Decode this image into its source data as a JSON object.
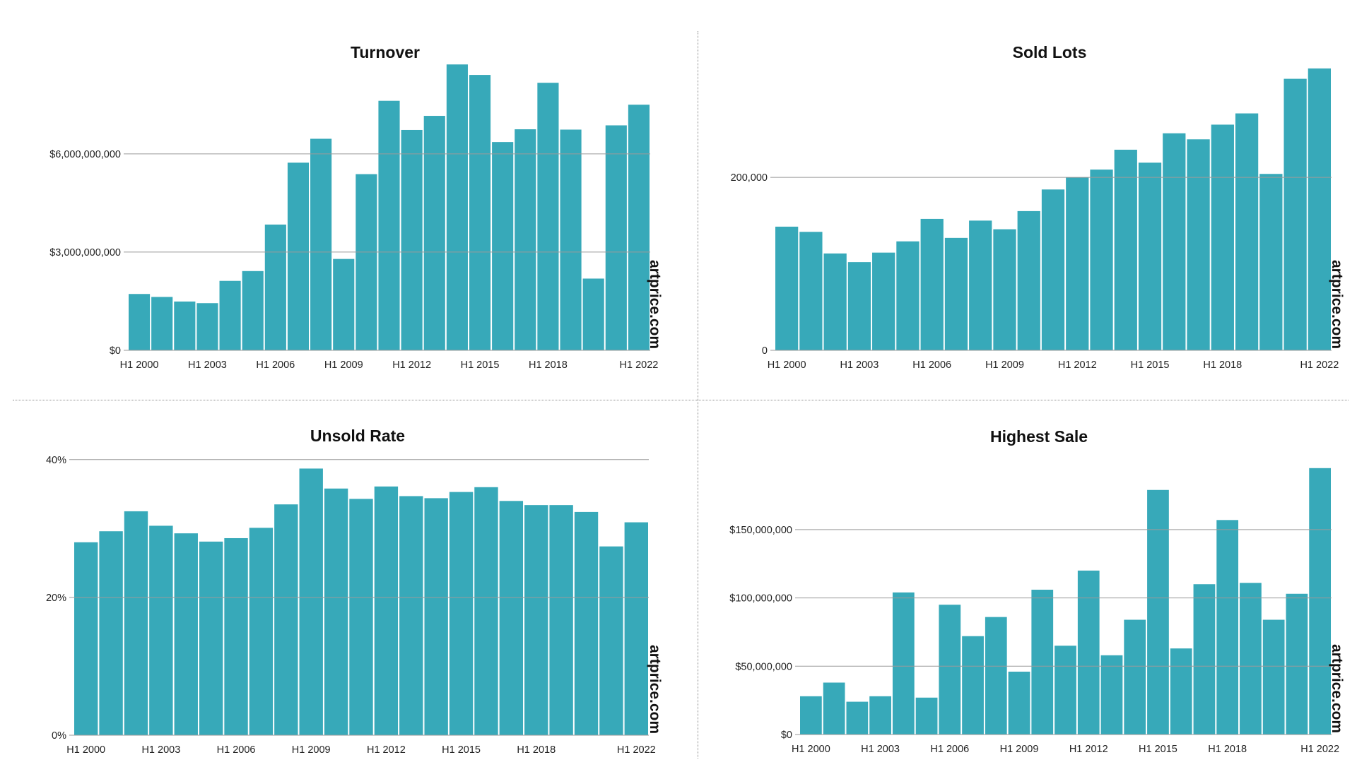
{
  "colors": {
    "bar": "#37a9b9",
    "grid": "#9a9a9a"
  },
  "chart_data": [
    {
      "id": "turnover",
      "type": "bar",
      "title": "Turnover",
      "watermark": "artprice.com",
      "categories": [
        "H1 2000",
        "H1 2001",
        "H1 2002",
        "H1 2003",
        "H1 2004",
        "H1 2005",
        "H1 2006",
        "H1 2007",
        "H1 2008",
        "H1 2009",
        "H1 2010",
        "H1 2011",
        "H1 2012",
        "H1 2013",
        "H1 2014",
        "H1 2015",
        "H1 2016",
        "H1 2017",
        "H1 2018",
        "H1 2019",
        "H1 2020",
        "H1 2021",
        "H1 2022"
      ],
      "values": [
        1720000000,
        1630000000,
        1490000000,
        1440000000,
        2120000000,
        2420000000,
        3840000000,
        5730000000,
        6460000000,
        2790000000,
        5380000000,
        7620000000,
        6730000000,
        7160000000,
        8730000000,
        8410000000,
        6360000000,
        6750000000,
        8170000000,
        6740000000,
        2190000000,
        6870000000,
        7500000000
      ],
      "ylim": [
        0,
        8800000000
      ],
      "yticks": [
        {
          "value": 0,
          "label": "$0"
        },
        {
          "value": 3000000000,
          "label": "$3,000,000,000"
        },
        {
          "value": 6000000000,
          "label": "$6,000,000,000"
        }
      ],
      "xtick_labels": [
        {
          "index": 0,
          "label": "H1 2000"
        },
        {
          "index": 3,
          "label": "H1 2003"
        },
        {
          "index": 6,
          "label": "H1 2006"
        },
        {
          "index": 9,
          "label": "H1 2009"
        },
        {
          "index": 12,
          "label": "H1 2012"
        },
        {
          "index": 15,
          "label": "H1 2015"
        },
        {
          "index": 18,
          "label": "H1 2018"
        },
        {
          "index": 22,
          "label": "H1 2022"
        }
      ]
    },
    {
      "id": "sold-lots",
      "type": "bar",
      "title": "Sold Lots",
      "watermark": "artprice.com",
      "categories": [
        "H1 2000",
        "H1 2001",
        "H1 2002",
        "H1 2003",
        "H1 2004",
        "H1 2005",
        "H1 2006",
        "H1 2007",
        "H1 2008",
        "H1 2009",
        "H1 2010",
        "H1 2011",
        "H1 2012",
        "H1 2013",
        "H1 2014",
        "H1 2015",
        "H1 2016",
        "H1 2017",
        "H1 2018",
        "H1 2019",
        "H1 2020",
        "H1 2021",
        "H1 2022"
      ],
      "values": [
        143000,
        137000,
        112000,
        102000,
        113000,
        126000,
        152000,
        130000,
        150000,
        140000,
        161000,
        186000,
        200000,
        209000,
        232000,
        217000,
        251000,
        244000,
        261000,
        274000,
        204000,
        314000,
        326000
      ],
      "ylim": [
        0,
        330000
      ],
      "yticks": [
        {
          "value": 0,
          "label": "0"
        },
        {
          "value": 200000,
          "label": "200,000"
        }
      ],
      "xtick_labels": [
        {
          "index": 0,
          "label": "H1 2000"
        },
        {
          "index": 3,
          "label": "H1 2003"
        },
        {
          "index": 6,
          "label": "H1 2006"
        },
        {
          "index": 9,
          "label": "H1 2009"
        },
        {
          "index": 12,
          "label": "H1 2012"
        },
        {
          "index": 15,
          "label": "H1 2015"
        },
        {
          "index": 18,
          "label": "H1 2018"
        },
        {
          "index": 22,
          "label": "H1 2022"
        }
      ]
    },
    {
      "id": "unsold-rate",
      "type": "bar",
      "title": "Unsold Rate",
      "watermark": "artprice.com",
      "categories": [
        "H1 2000",
        "H1 2001",
        "H1 2002",
        "H1 2003",
        "H1 2004",
        "H1 2005",
        "H1 2006",
        "H1 2007",
        "H1 2008",
        "H1 2009",
        "H1 2010",
        "H1 2011",
        "H1 2012",
        "H1 2013",
        "H1 2014",
        "H1 2015",
        "H1 2016",
        "H1 2017",
        "H1 2018",
        "H1 2019",
        "H1 2020",
        "H1 2021",
        "H1 2022"
      ],
      "values": [
        28.0,
        29.6,
        32.5,
        30.4,
        29.3,
        28.1,
        28.6,
        30.1,
        33.5,
        38.7,
        35.8,
        34.3,
        36.1,
        34.7,
        34.4,
        35.3,
        36.0,
        34.0,
        33.4,
        33.4,
        32.4,
        27.4,
        30.9
      ],
      "ylim": [
        0,
        41
      ],
      "yticks": [
        {
          "value": 0,
          "label": "0%"
        },
        {
          "value": 20,
          "label": "20%"
        },
        {
          "value": 40,
          "label": "40%"
        }
      ],
      "xtick_labels": [
        {
          "index": 0,
          "label": "H1 2000"
        },
        {
          "index": 3,
          "label": "H1 2003"
        },
        {
          "index": 6,
          "label": "H1 2006"
        },
        {
          "index": 9,
          "label": "H1 2009"
        },
        {
          "index": 12,
          "label": "H1 2012"
        },
        {
          "index": 15,
          "label": "H1 2015"
        },
        {
          "index": 18,
          "label": "H1 2018"
        },
        {
          "index": 22,
          "label": "H1 2022"
        }
      ]
    },
    {
      "id": "highest-sale",
      "type": "bar",
      "title": "Highest Sale",
      "watermark": "artprice.com",
      "categories": [
        "H1 2000",
        "H1 2001",
        "H1 2002",
        "H1 2003",
        "H1 2004",
        "H1 2005",
        "H1 2006",
        "H1 2007",
        "H1 2008",
        "H1 2009",
        "H1 2010",
        "H1 2011",
        "H1 2012",
        "H1 2013",
        "H1 2014",
        "H1 2015",
        "H1 2016",
        "H1 2017",
        "H1 2018",
        "H1 2019",
        "H1 2020",
        "H1 2021",
        "H1 2022"
      ],
      "values": [
        28000000,
        38000000,
        24000000,
        28000000,
        104000000,
        27000000,
        95000000,
        72000000,
        86000000,
        46000000,
        106000000,
        65000000,
        120000000,
        58000000,
        84000000,
        179000000,
        63000000,
        110000000,
        157000000,
        111000000,
        84000000,
        103000000,
        195000000
      ],
      "ylim": [
        0,
        198000000
      ],
      "yticks": [
        {
          "value": 0,
          "label": "$0"
        },
        {
          "value": 50000000,
          "label": "$50,000,000"
        },
        {
          "value": 100000000,
          "label": "$100,000,000"
        },
        {
          "value": 150000000,
          "label": "$150,000,000"
        }
      ],
      "xtick_labels": [
        {
          "index": 0,
          "label": "H1 2000"
        },
        {
          "index": 3,
          "label": "H1 2003"
        },
        {
          "index": 6,
          "label": "H1 2006"
        },
        {
          "index": 9,
          "label": "H1 2009"
        },
        {
          "index": 12,
          "label": "H1 2012"
        },
        {
          "index": 15,
          "label": "H1 2015"
        },
        {
          "index": 18,
          "label": "H1 2018"
        },
        {
          "index": 22,
          "label": "H1 2022"
        }
      ]
    }
  ]
}
